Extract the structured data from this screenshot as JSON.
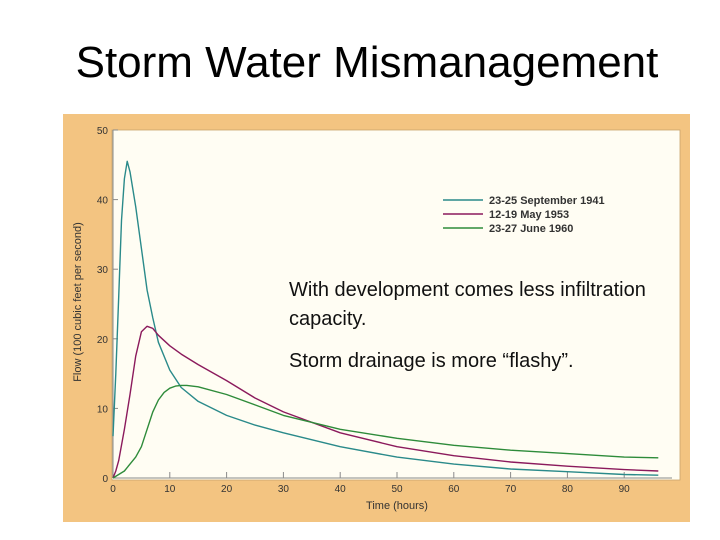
{
  "slide": {
    "title": "Storm Water Mismanagement",
    "caption_1": "With development comes less infiltration capacity.",
    "caption_2": "Storm drainage is more “flashy”."
  },
  "colors": {
    "frame": "#f3c481",
    "plot_background": "#fffdf3",
    "axis": "#8a8a8a"
  },
  "chart_data": {
    "type": "line",
    "xlabel": "Time (hours)",
    "ylabel": "Flow (100 cubic feet per second)",
    "xlim": [
      0,
      97
    ],
    "ylim": [
      0,
      50
    ],
    "xticks": [
      0,
      10,
      20,
      30,
      40,
      50,
      60,
      70,
      80,
      90
    ],
    "yticks": [
      0,
      10,
      20,
      30,
      40,
      50
    ],
    "grid": false,
    "legend_position": "top-right",
    "series": [
      {
        "name": "23-25 September 1941",
        "color": "#2a8a8a",
        "x": [
          0,
          0.5,
          1,
          1.5,
          2,
          2.5,
          3,
          4,
          5,
          6,
          7,
          8,
          10,
          12,
          15,
          20,
          25,
          30,
          40,
          50,
          60,
          70,
          80,
          90,
          96
        ],
        "y": [
          6,
          15,
          26,
          37,
          43,
          45.5,
          44,
          39,
          33,
          27,
          23,
          19.5,
          15.5,
          13,
          11,
          9,
          7.6,
          6.5,
          4.5,
          3,
          2,
          1.3,
          0.9,
          0.5,
          0.4
        ]
      },
      {
        "name": "12-19 May 1953",
        "color": "#8b1a5c",
        "x": [
          0,
          0.5,
          1,
          2,
          3,
          4,
          5,
          6,
          7,
          8,
          10,
          12,
          15,
          20,
          25,
          30,
          40,
          50,
          60,
          70,
          80,
          90,
          96
        ],
        "y": [
          0,
          1,
          2.5,
          7,
          12,
          17.5,
          21,
          21.8,
          21.5,
          20.5,
          19,
          17.8,
          16.3,
          14,
          11.5,
          9.5,
          6.5,
          4.5,
          3.2,
          2.3,
          1.7,
          1.2,
          1
        ]
      },
      {
        "name": "23-27 June 1960",
        "color": "#2e8b3a",
        "x": [
          0,
          2,
          3,
          4,
          5,
          6,
          7,
          8,
          9,
          10,
          11,
          12,
          13,
          15,
          20,
          25,
          30,
          40,
          50,
          60,
          70,
          80,
          90,
          96
        ],
        "y": [
          0,
          1,
          2,
          3,
          4.5,
          7,
          9.5,
          11.2,
          12.3,
          12.9,
          13.2,
          13.3,
          13.3,
          13.1,
          12,
          10.5,
          9,
          7,
          5.7,
          4.7,
          4,
          3.5,
          3,
          2.9
        ]
      }
    ]
  }
}
